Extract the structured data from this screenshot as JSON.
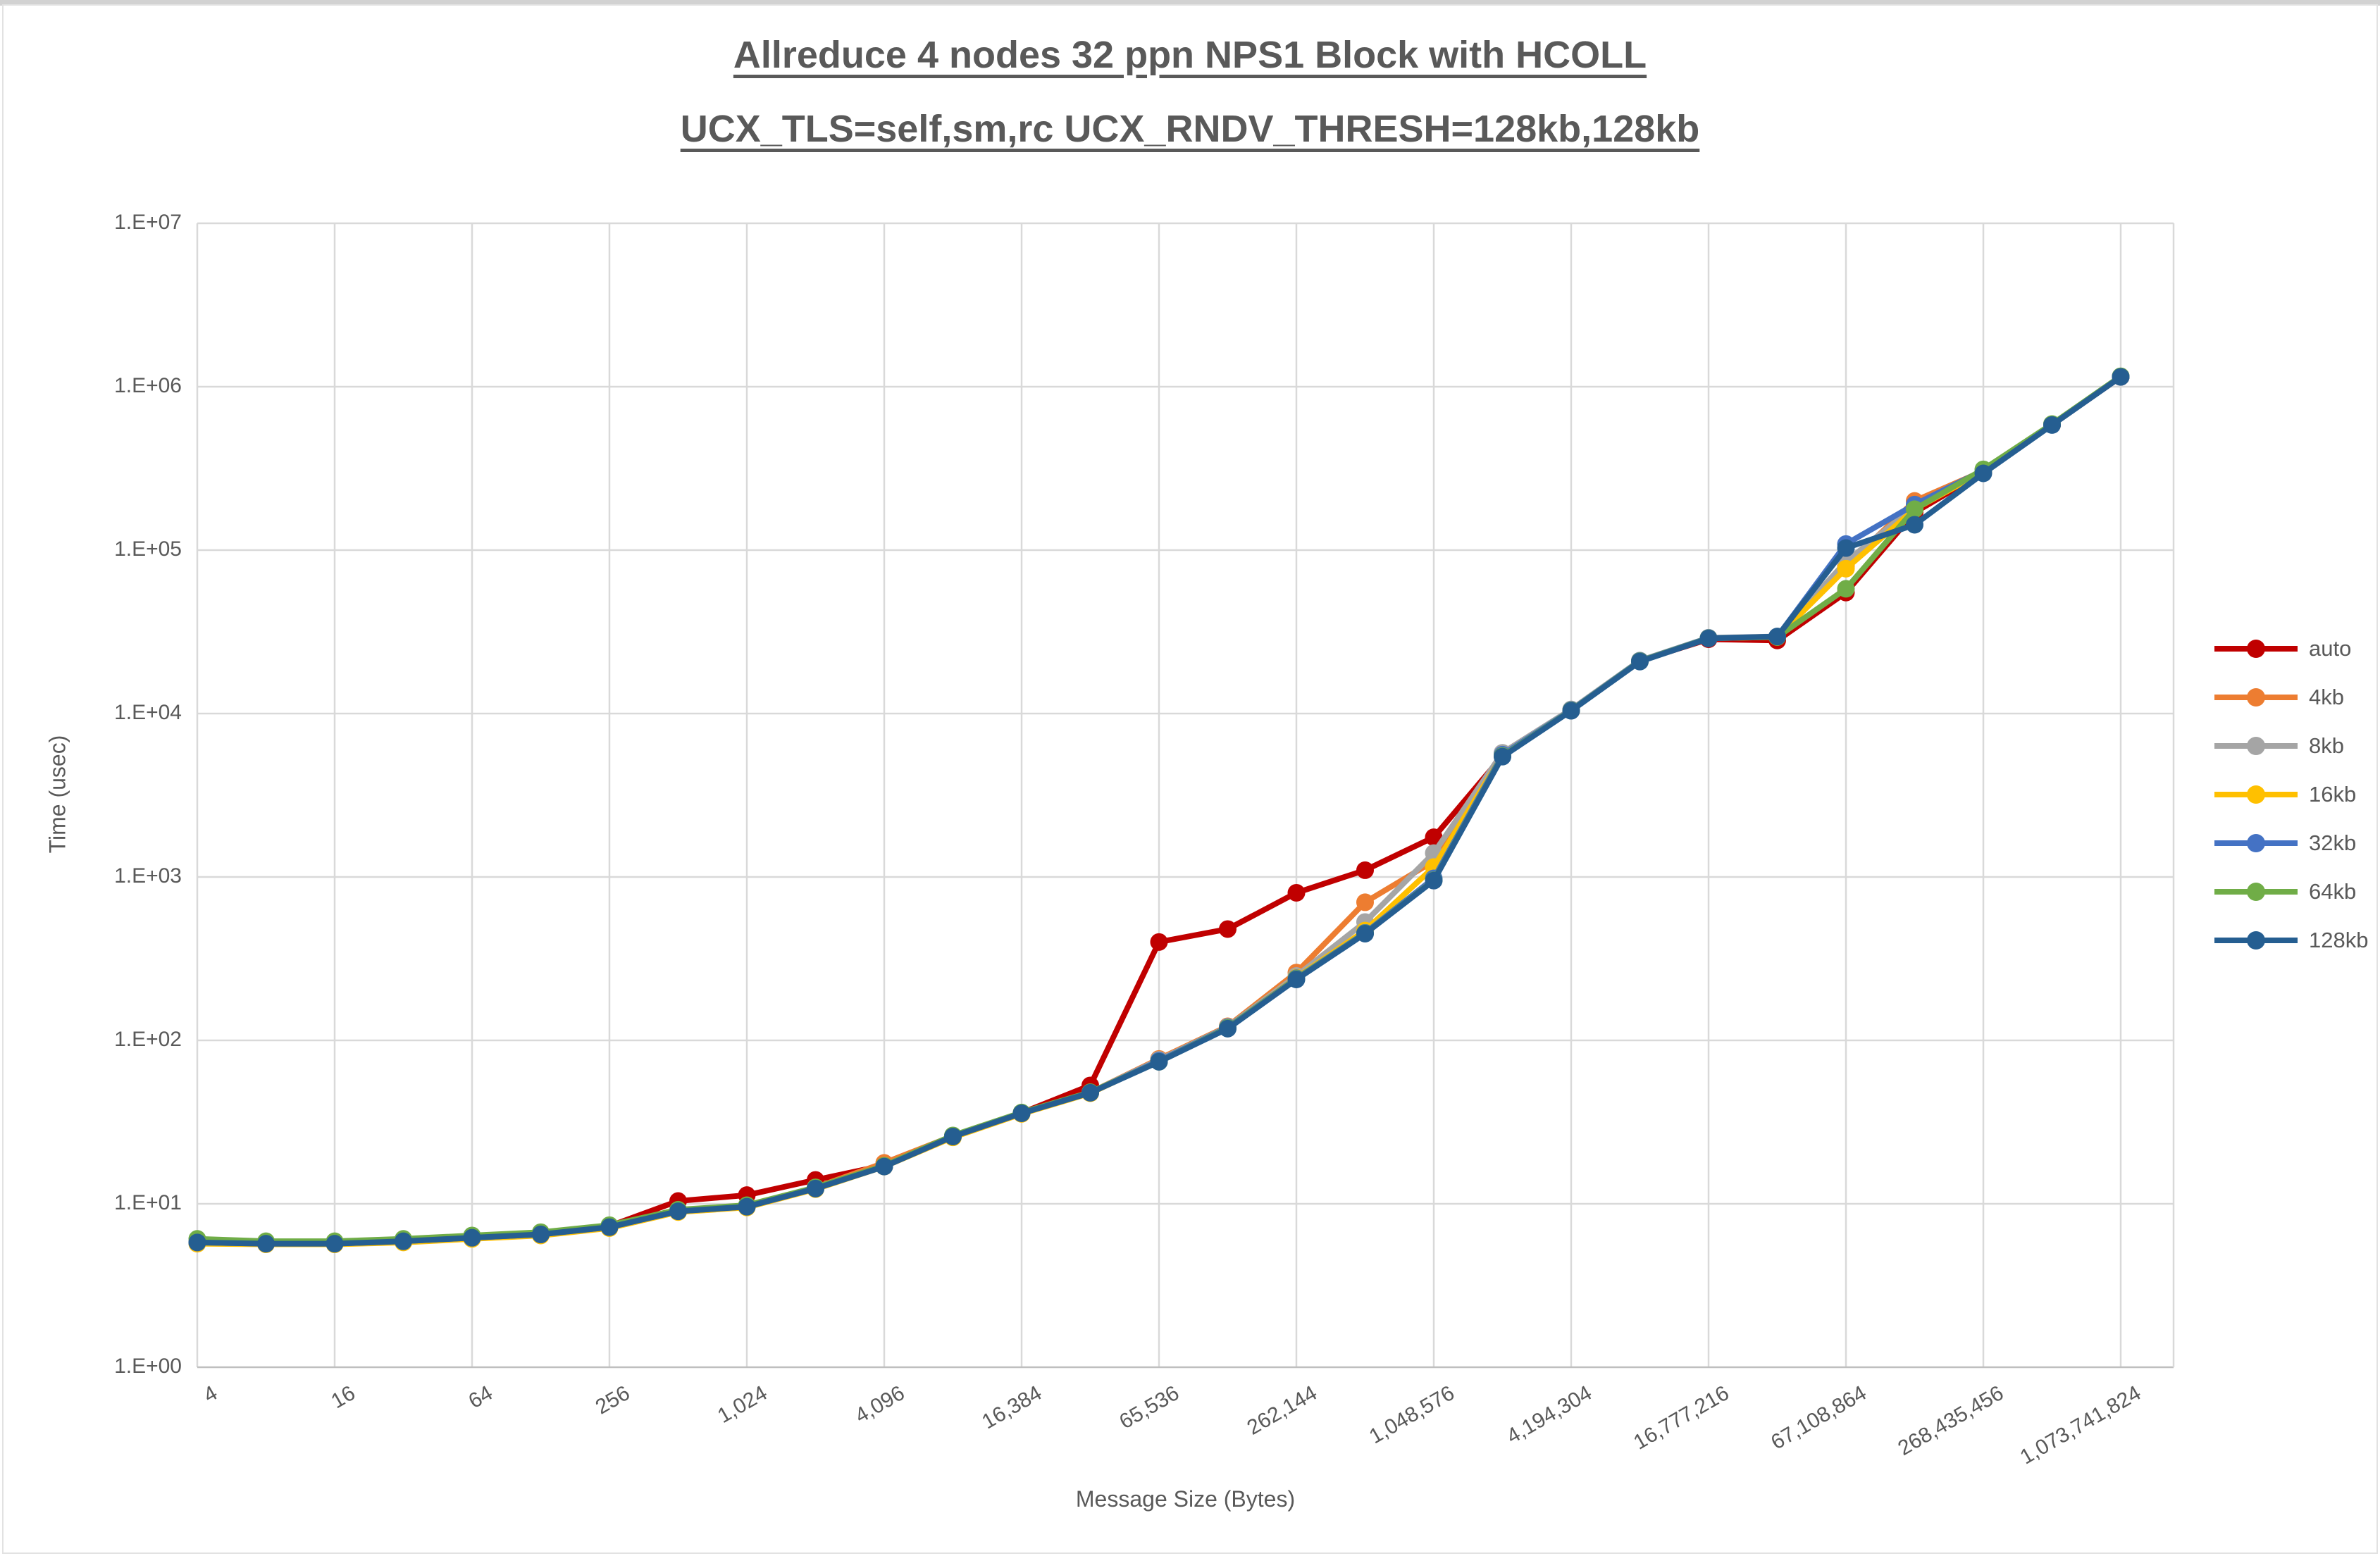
{
  "title": {
    "line1": "Allreduce 4 nodes 32 ppn NPS1 Block with HCOLL",
    "line2": "UCX_TLS=self,sm,rc UCX_RNDV_THRESH=128kb,128kb"
  },
  "colors": {
    "text": "#595959",
    "gridline": "#d9d9d9",
    "axis_line": "#bfbfbf",
    "background": "#ffffff"
  },
  "chart_data": {
    "type": "line",
    "title": "Allreduce 4 nodes 32 ppn NPS1 Block with HCOLL UCX_TLS=self,sm,rc UCX_RNDV_THRESH=128kb,128kb",
    "xlabel": "Message Size (Bytes)",
    "ylabel": "Time (usec)",
    "x_scale": "log2",
    "y_scale": "log10",
    "ylim": [
      1,
      10000000
    ],
    "grid": true,
    "legend_position": "right",
    "y_tick_labels": [
      "1.E+00",
      "1.E+01",
      "1.E+02",
      "1.E+03",
      "1.E+04",
      "1.E+05",
      "1.E+06",
      "1.E+07"
    ],
    "x_tick_values": [
      4,
      16,
      64,
      256,
      1024,
      4096,
      16384,
      65536,
      262144,
      1048576,
      4194304,
      16777216,
      67108864,
      268435456,
      1073741824
    ],
    "x_tick_labels": [
      "4",
      "16",
      "64",
      "256",
      "1,024",
      "4,096",
      "16,384",
      "65,536",
      "262,144",
      "1,048,576",
      "4,194,304",
      "16,777,216",
      "67,108,864",
      "268,435,456",
      "1,073,741,824"
    ],
    "x": [
      4,
      8,
      16,
      32,
      64,
      128,
      256,
      512,
      1024,
      2048,
      4096,
      8192,
      16384,
      32768,
      65536,
      131072,
      262144,
      524288,
      1048576,
      2097152,
      4194304,
      8388608,
      16777216,
      33554432,
      67108864,
      134217728,
      268435456,
      536870912,
      1073741824
    ],
    "series": [
      {
        "name": "auto",
        "color": "#C00000",
        "values": [
          5.8,
          5.7,
          5.7,
          5.9,
          6.2,
          6.5,
          7.3,
          10.4,
          11.3,
          14.0,
          17.2,
          26,
          36,
          53,
          400,
          480,
          800,
          1100,
          1750,
          5500,
          10500,
          21000,
          28500,
          28000,
          55000,
          170000,
          300000,
          585000,
          1150000
        ]
      },
      {
        "name": "4kb",
        "color": "#ED7D31",
        "values": [
          5.8,
          5.7,
          5.7,
          5.9,
          6.2,
          6.5,
          7.2,
          9.0,
          9.6,
          12.6,
          17.8,
          26,
          36,
          48,
          77,
          122,
          260,
          700,
          1250,
          5600,
          10500,
          21000,
          29000,
          29500,
          80000,
          200000,
          305000,
          588000,
          1155000
        ]
      },
      {
        "name": "8kb",
        "color": "#A5A5A5",
        "values": [
          5.8,
          5.7,
          5.7,
          5.9,
          6.2,
          6.5,
          7.2,
          9.0,
          9.6,
          12.4,
          17.0,
          26,
          36,
          48,
          76,
          121,
          248,
          530,
          1400,
          5750,
          10600,
          21100,
          29100,
          29600,
          85000,
          185000,
          306000,
          588000,
          1155000
        ]
      },
      {
        "name": "16kb",
        "color": "#FFC000",
        "values": [
          5.7,
          5.65,
          5.65,
          5.8,
          6.1,
          6.4,
          7.1,
          8.9,
          9.5,
          12.3,
          16.9,
          25.5,
          35.5,
          47.5,
          75,
          120,
          242,
          470,
          1150,
          5550,
          10450,
          20900,
          28900,
          29400,
          77000,
          178000,
          303000,
          586000,
          1152000
        ]
      },
      {
        "name": "32kb",
        "color": "#4472C4",
        "values": [
          5.8,
          5.7,
          5.7,
          5.9,
          6.2,
          6.5,
          7.2,
          9.0,
          9.6,
          12.4,
          17.0,
          26,
          36,
          48,
          75,
          120,
          240,
          455,
          980,
          5600,
          10500,
          21000,
          29000,
          29500,
          109000,
          190000,
          308000,
          589000,
          1156000
        ]
      },
      {
        "name": "64kb",
        "color": "#70AD47",
        "values": [
          6.1,
          5.9,
          5.9,
          6.1,
          6.4,
          6.7,
          7.4,
          9.2,
          9.8,
          12.6,
          17.1,
          26.2,
          36.2,
          48.2,
          74,
          119,
          238,
          452,
          955,
          5500,
          10450,
          20900,
          28900,
          29400,
          58000,
          178000,
          312000,
          591000,
          1158000
        ]
      },
      {
        "name": "128kb",
        "color": "#255E91",
        "values": [
          5.8,
          5.7,
          5.7,
          5.9,
          6.2,
          6.5,
          7.2,
          9.0,
          9.6,
          12.4,
          16.9,
          25.8,
          35.8,
          47.8,
          74,
          118,
          236,
          450,
          950,
          5450,
          10400,
          20800,
          28800,
          29600,
          103000,
          143000,
          295000,
          583000,
          1148000
        ]
      }
    ]
  }
}
